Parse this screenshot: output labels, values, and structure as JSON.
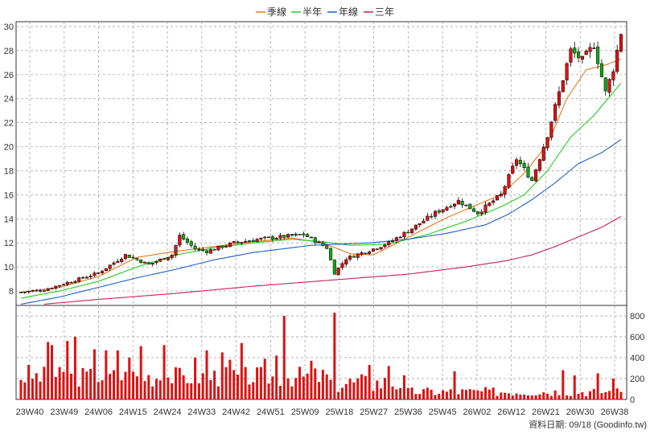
{
  "legend": [
    {
      "label": "季線",
      "color": "#e67817"
    },
    {
      "label": "半年",
      "color": "#22cc22"
    },
    {
      "label": "年線",
      "color": "#1f5fc8"
    },
    {
      "label": "三年",
      "color": "#cc1e5a"
    }
  ],
  "footer": "資料日期: 09/18  (Goodinfo.tw)",
  "colors": {
    "up": "#dd1111",
    "down": "#11aa11",
    "volume": "#dd1111",
    "grid": "#999999"
  },
  "chart_data": [
    {
      "type": "candlestick",
      "grid": true,
      "x_tick_labels": [
        "23W40",
        "23W49",
        "24W06",
        "24W15",
        "24W24",
        "24W33",
        "24W42",
        "24W51",
        "25W09",
        "25W18",
        "25W27",
        "25W36",
        "25W45",
        "26W02",
        "26W12",
        "26W21",
        "26W30",
        "26W38"
      ],
      "y_tick_labels": [
        "30",
        "28",
        "26",
        "24",
        "22",
        "20",
        "18",
        "16",
        "14",
        "12",
        "10",
        "8"
      ],
      "ylim": [
        6.8,
        30.4
      ],
      "weeks": 156,
      "close_anchors": [
        [
          0,
          7.9
        ],
        [
          6,
          8.1
        ],
        [
          10,
          8.5
        ],
        [
          20,
          9.5
        ],
        [
          27,
          11.0
        ],
        [
          33,
          10.2
        ],
        [
          39,
          11.0
        ],
        [
          41,
          12.6
        ],
        [
          45,
          11.5
        ],
        [
          48,
          11.3
        ],
        [
          55,
          12.0
        ],
        [
          61,
          12.3
        ],
        [
          67,
          12.5
        ],
        [
          73,
          12.7
        ],
        [
          79,
          11.6
        ],
        [
          81,
          9.5
        ],
        [
          84,
          10.7
        ],
        [
          91,
          11.5
        ],
        [
          95,
          12.0
        ],
        [
          101,
          13.2
        ],
        [
          107,
          14.5
        ],
        [
          113,
          15.5
        ],
        [
          118,
          14.5
        ],
        [
          124,
          16.0
        ],
        [
          128,
          19.0
        ],
        [
          132,
          17.2
        ],
        [
          136,
          21.0
        ],
        [
          139,
          24.5
        ],
        [
          142,
          28.0
        ],
        [
          145,
          27.2
        ],
        [
          148,
          28.5
        ],
        [
          151,
          24.5
        ],
        [
          153,
          26.5
        ],
        [
          155,
          29.5
        ]
      ],
      "quarter_ma_anchors": [
        [
          0,
          7.9
        ],
        [
          10,
          8.3
        ],
        [
          20,
          9.2
        ],
        [
          30,
          10.8
        ],
        [
          40,
          11.3
        ],
        [
          50,
          11.7
        ],
        [
          60,
          12.1
        ],
        [
          70,
          12.4
        ],
        [
          78,
          12.0
        ],
        [
          85,
          11.1
        ],
        [
          91,
          11.0
        ],
        [
          96,
          11.8
        ],
        [
          102,
          12.8
        ],
        [
          110,
          14.1
        ],
        [
          118,
          15.2
        ],
        [
          124,
          16.0
        ],
        [
          130,
          17.8
        ],
        [
          136,
          20.2
        ],
        [
          141,
          24.0
        ],
        [
          146,
          26.4
        ],
        [
          151,
          26.8
        ],
        [
          155,
          27.3
        ]
      ],
      "half_year_ma_anchors": [
        [
          0,
          7.4
        ],
        [
          10,
          8.0
        ],
        [
          20,
          8.8
        ],
        [
          30,
          10.0
        ],
        [
          40,
          11.0
        ],
        [
          50,
          11.6
        ],
        [
          60,
          12.0
        ],
        [
          70,
          12.3
        ],
        [
          78,
          12.1
        ],
        [
          85,
          11.8
        ],
        [
          95,
          11.9
        ],
        [
          105,
          12.7
        ],
        [
          115,
          13.8
        ],
        [
          124,
          15.0
        ],
        [
          130,
          16.0
        ],
        [
          136,
          18.0
        ],
        [
          142,
          20.8
        ],
        [
          148,
          22.6
        ],
        [
          155,
          25.3
        ]
      ],
      "year_ma_anchors": [
        [
          0,
          6.9
        ],
        [
          10,
          7.5
        ],
        [
          20,
          8.3
        ],
        [
          30,
          9.1
        ],
        [
          40,
          9.8
        ],
        [
          50,
          10.6
        ],
        [
          60,
          11.2
        ],
        [
          75,
          11.8
        ],
        [
          90,
          12.0
        ],
        [
          100,
          12.3
        ],
        [
          110,
          12.8
        ],
        [
          120,
          13.5
        ],
        [
          126,
          14.4
        ],
        [
          132,
          15.6
        ],
        [
          138,
          17.0
        ],
        [
          144,
          18.6
        ],
        [
          150,
          19.5
        ],
        [
          155,
          20.6
        ]
      ],
      "three_year_ma_anchors": [
        [
          6,
          6.9
        ],
        [
          20,
          7.3
        ],
        [
          40,
          7.8
        ],
        [
          60,
          8.4
        ],
        [
          80,
          8.9
        ],
        [
          100,
          9.4
        ],
        [
          115,
          10.0
        ],
        [
          125,
          10.5
        ],
        [
          132,
          11.0
        ],
        [
          138,
          11.7
        ],
        [
          144,
          12.5
        ],
        [
          150,
          13.3
        ],
        [
          155,
          14.2
        ]
      ]
    },
    {
      "type": "bar",
      "title": "volume",
      "y_tick_labels": [
        "800",
        "600",
        "400",
        "200",
        "0"
      ],
      "ylim": [
        0,
        900
      ],
      "spikes": [
        [
          2,
          330
        ],
        [
          7,
          550
        ],
        [
          8,
          520
        ],
        [
          12,
          560
        ],
        [
          14,
          600
        ],
        [
          22,
          470
        ],
        [
          28,
          400
        ],
        [
          31,
          510
        ],
        [
          37,
          520
        ],
        [
          45,
          400
        ],
        [
          52,
          450
        ],
        [
          57,
          540
        ],
        [
          63,
          390
        ],
        [
          68,
          800
        ],
        [
          75,
          370
        ],
        [
          81,
          830
        ],
        [
          90,
          330
        ],
        [
          95,
          320
        ],
        [
          112,
          270
        ],
        [
          140,
          280
        ],
        [
          143,
          230
        ],
        [
          149,
          250
        ],
        [
          153,
          200
        ],
        [
          54,
          380
        ],
        [
          66,
          420
        ],
        [
          48,
          470
        ],
        [
          25,
          470
        ],
        [
          19,
          480
        ]
      ]
    }
  ]
}
